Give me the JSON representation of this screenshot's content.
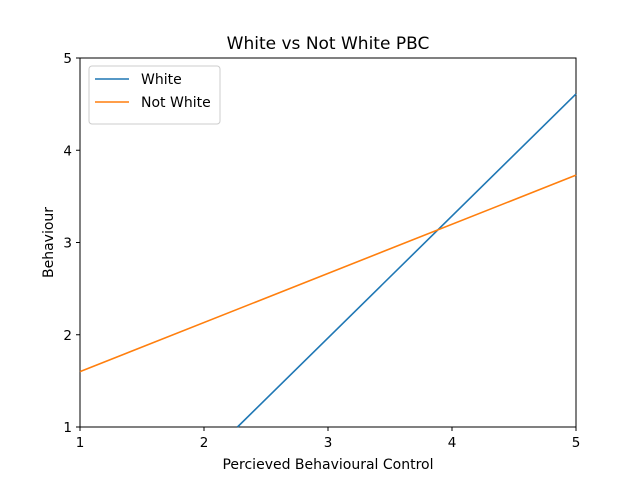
{
  "chart_data": {
    "type": "line",
    "title": "White vs Not White PBC",
    "xlabel": "Percieved Behavioural Control",
    "ylabel": "Behaviour",
    "xlim": [
      1,
      5
    ],
    "ylim": [
      1,
      5
    ],
    "xticks": [
      "1",
      "2",
      "3",
      "4",
      "5"
    ],
    "yticks": [
      "1",
      "2",
      "3",
      "4",
      "5"
    ],
    "legend_position": "top-left",
    "grid": false,
    "series": [
      {
        "name": "White",
        "color": "#1f77b4",
        "x": [
          2.27,
          5
        ],
        "y": [
          1.0,
          4.61
        ]
      },
      {
        "name": "Not White",
        "color": "#ff7f0e",
        "x": [
          1,
          5
        ],
        "y": [
          1.6,
          3.73
        ]
      }
    ]
  }
}
